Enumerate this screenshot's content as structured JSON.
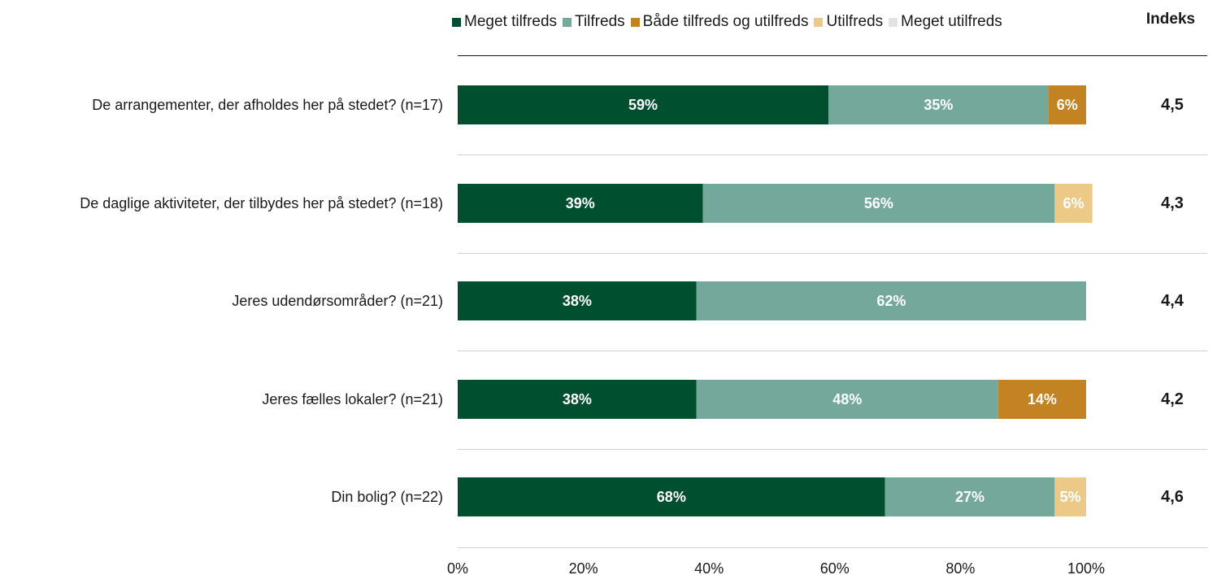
{
  "chart_data": {
    "type": "bar",
    "orientation": "horizontal",
    "stacked": "100%",
    "categories": [
      "De arrangementer, der afholdes her på stedet? (n=17)",
      "De daglige aktiviteter, der tilbydes her på stedet? (n=18)",
      "Jeres udendørsområder? (n=21)",
      "Jeres fælles lokaler? (n=21)",
      "Din bolig? (n=22)"
    ],
    "series": [
      {
        "name": "Meget tilfreds",
        "color": "#00502f",
        "values": [
          59,
          39,
          38,
          38,
          68
        ]
      },
      {
        "name": "Tilfreds",
        "color": "#74a89a",
        "values": [
          35,
          56,
          62,
          48,
          27
        ]
      },
      {
        "name": "Både tilfreds og utilfreds",
        "color": "#c48323",
        "values": [
          6,
          0,
          0,
          14,
          0
        ]
      },
      {
        "name": "Utilfreds",
        "color": "#ecc987",
        "values": [
          0,
          6,
          0,
          0,
          5
        ]
      },
      {
        "name": "Meget utilfreds",
        "color": "#e3e3e3",
        "values": [
          0,
          0,
          0,
          0,
          0
        ]
      }
    ],
    "data_labels": [
      [
        "59%",
        "35%",
        "6%",
        "",
        ""
      ],
      [
        "39%",
        "56%",
        "",
        "6%",
        ""
      ],
      [
        "38%",
        "62%",
        "",
        "",
        ""
      ],
      [
        "38%",
        "48%",
        "14%",
        "",
        ""
      ],
      [
        "68%",
        "27%",
        "",
        "5%",
        ""
      ]
    ],
    "index_header": "Indeks",
    "index_values": [
      "4,5",
      "4,3",
      "4,4",
      "4,2",
      "4,6"
    ],
    "x_ticks": [
      "0%",
      "20%",
      "40%",
      "60%",
      "80%",
      "100%"
    ],
    "xlim": [
      0,
      100
    ],
    "legend_position": "top"
  }
}
